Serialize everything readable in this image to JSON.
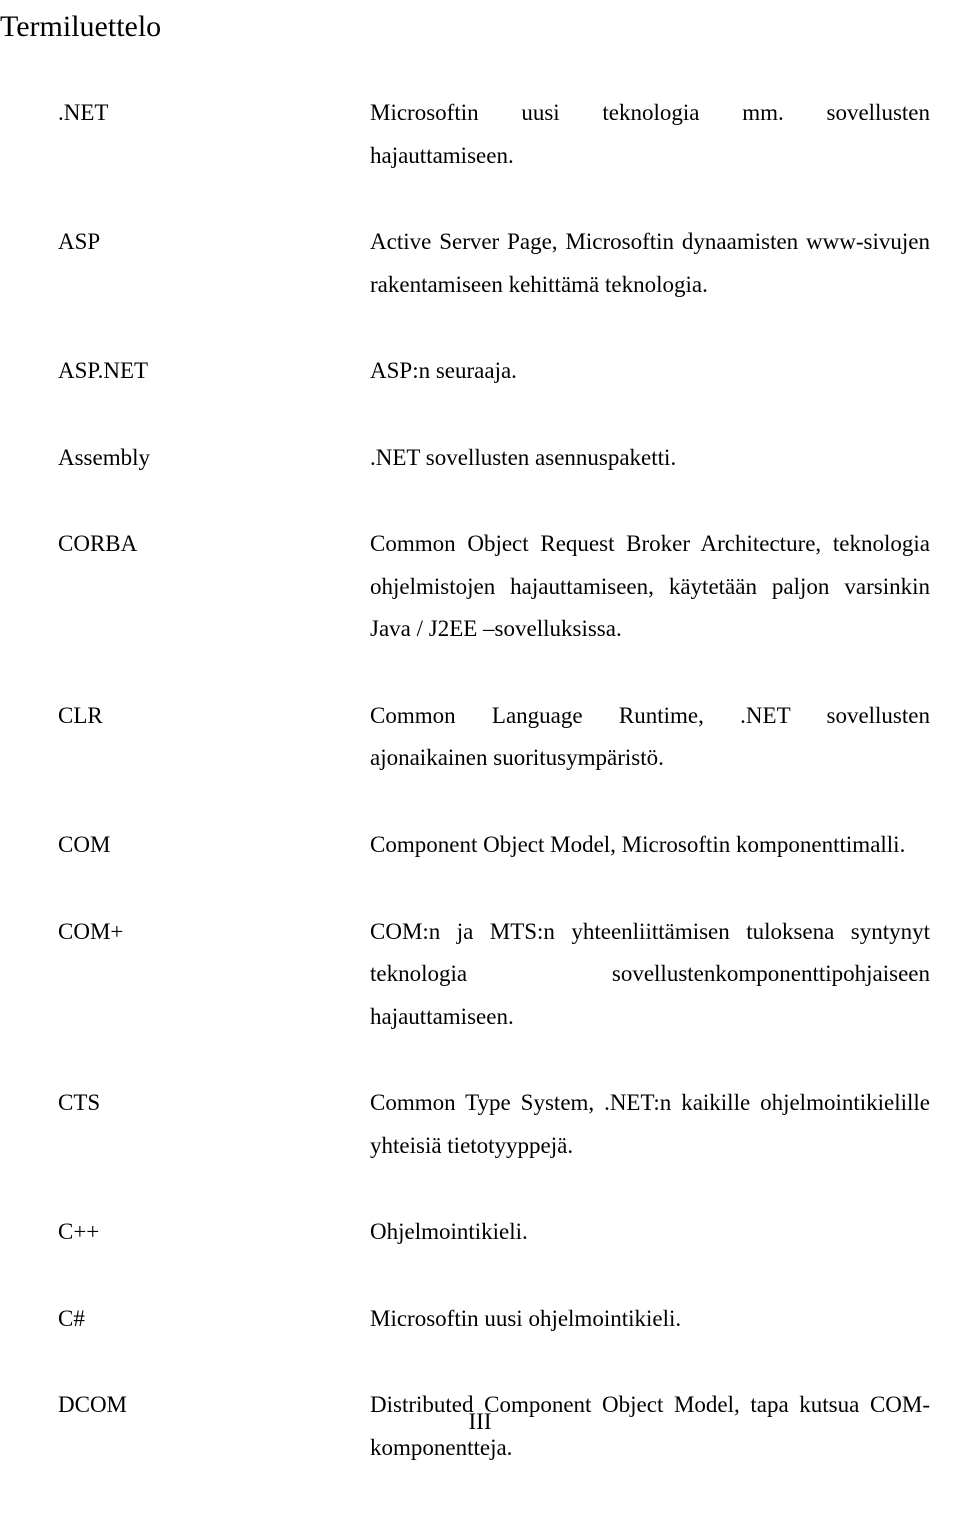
{
  "title": "Termiluettelo",
  "entries": [
    {
      "term": ".NET",
      "definition": "Microsoftin uusi teknologia mm. sovellusten hajauttamiseen."
    },
    {
      "term": "ASP",
      "definition": "Active Server Page, Microsoftin dynaamisten www-sivujen rakentamiseen kehittämä teknologia."
    },
    {
      "term": "ASP.NET",
      "definition": "ASP:n seuraaja."
    },
    {
      "term": "Assembly",
      "definition": ".NET sovellusten asennuspaketti."
    },
    {
      "term": "CORBA",
      "definition": "Common Object Request Broker Architecture, teknologia ohjelmistojen hajauttamiseen, käytetään paljon varsinkin Java / J2EE –sovelluksissa."
    },
    {
      "term": "CLR",
      "definition": "Common Language Runtime, .NET sovellusten ajonaikainen suoritusympäristö."
    },
    {
      "term": "COM",
      "definition": "Component Object Model, Microsoftin komponenttimalli."
    },
    {
      "term": "COM+",
      "definition": "COM:n ja MTS:n yhteenliittämisen tuloksena syntynyt teknologia sovellustenkomponenttipohjaiseen hajauttamiseen."
    },
    {
      "term": "CTS",
      "definition": "Common Type System, .NET:n kaikille ohjelmointikielille yhteisiä tietotyyppejä."
    },
    {
      "term": "C++",
      "definition": "Ohjelmointikieli."
    },
    {
      "term": "C#",
      "definition": "Microsoftin uusi ohjelmointikieli."
    },
    {
      "term": "DCOM",
      "definition": "Distributed Component Object Model, tapa kutsua COM-komponentteja."
    }
  ],
  "footer": "III"
}
